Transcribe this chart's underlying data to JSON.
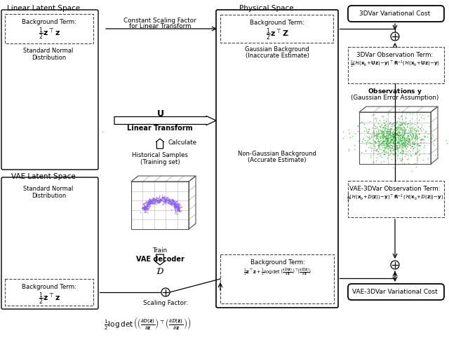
{
  "bg_color": "#ffffff",
  "colors": {
    "blue_dots": "#4472C4",
    "purple_dots": "#8B5CF6",
    "green_dots": "#22AA22",
    "box_border": "#000000",
    "dashed_border": "#555555",
    "grid_color": "#bbbbbb",
    "text_color": "#000000"
  },
  "labels": {
    "linear_latent_space": "Linear Latent Space",
    "vae_latent_space": "VAE Latent Space",
    "physical_space": "Physical Space",
    "bg_term": "Background Term:",
    "bg_term_eq_linear": "$\\frac{1}{2}\\mathbf{z}^\\top\\mathbf{z}$",
    "bg_term_eq_phys": "$\\frac{1}{2}\\mathbf{z}^\\top\\mathbf{Z}$",
    "std_normal": "Standard Normal\nDistribution",
    "constant_scaling_1": "Constant Scaling Factor",
    "constant_scaling_2": "for Linear Transform",
    "U_label": "$\\mathbf{U}$",
    "linear_transform": "Linear Transform",
    "calculate": "Calculate",
    "historical_samples": "Historical Samples\n(Training set)",
    "gaussian_bg_1": "Gaussian Background",
    "gaussian_bg_2": "(Inaccurate Estimate)",
    "non_gaussian_bg_1": "Non-Gaussian Background",
    "non_gaussian_bg_2": "(Accurate Estimate)",
    "train": "Train",
    "vae_decoder": "VAE decoder",
    "D_label": "$\\mathcal{D}$",
    "scaling_factor": "Scaling Factor:",
    "scaling_factor_eq": "$\\frac{1}{2}\\log\\det\\left(\\left(\\frac{\\partial\\mathcal{D}(\\mathbf{z})}{\\partial\\mathbf{z}}\\right)^\\top\\left(\\frac{\\partial\\mathcal{D}(\\mathbf{z})}{\\partial\\mathbf{z}}\\right)\\right)$",
    "obs_y_1": "Observations $\\mathbf{y}$",
    "obs_y_2": "(Gaussian Error Assumption)",
    "3dvar_cost": "3DVar Variational Cost",
    "vae3dvar_cost": "VAE-3DVar Variational Cost",
    "obs_3dvar_title": "3DVar Observation Term:",
    "obs_3dvar_eq": "$\\frac{1}{2}(\\mathcal{H}(\\mathbf{x}_b\\!+\\!\\mathbf{U}\\mathbf{z})\\!-\\!\\mathbf{y})^\\top\\mathbf{R}^{-1}(\\mathcal{H}(\\mathbf{x}_b\\!+\\!\\mathbf{U}\\mathbf{z})\\!-\\!\\mathbf{y})$",
    "obs_vae3dvar_title": "VAE-3DVar Observation Term:",
    "obs_vae3dvar_eq": "$\\frac{1}{2}(\\mathcal{H}(\\mathbf{x}_b\\!+\\!\\mathcal{D}(\\mathbf{z}))\\!-\\!\\mathbf{y})^\\top\\mathbf{R}^{-1}(\\mathcal{H}(\\mathbf{x}_b\\!+\\!\\mathcal{D}(\\mathbf{z}))\\!-\\!\\mathbf{y})$",
    "bg_vae3dvar_title": "Background Term:",
    "bg_vae3dvar_eq": "$\\frac{1}{2}\\mathbf{z}^\\top\\mathbf{z}+\\frac{1}{2}\\log\\det\\left(\\frac{\\partial\\mathcal{D}(\\mathbf{z})}{\\partial\\mathbf{z}}\\right)^\\top\\!\\!\\left(\\frac{\\partial\\mathcal{D}(\\mathbf{z})}{\\partial\\mathbf{z}}\\right)$"
  }
}
